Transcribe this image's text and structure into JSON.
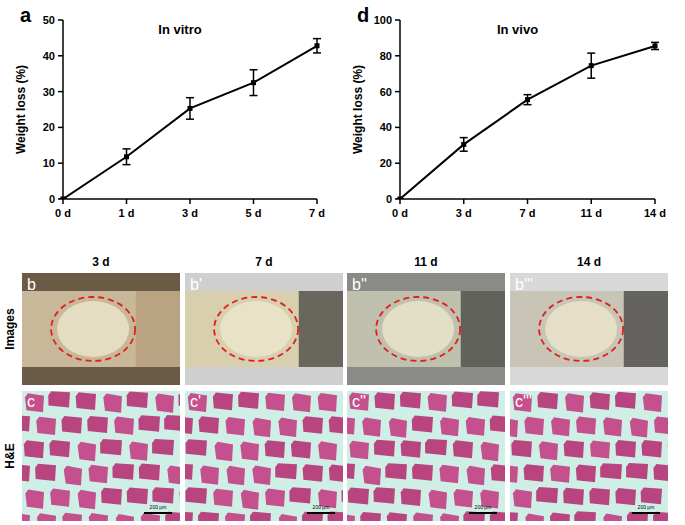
{
  "chart_data": [
    {
      "type": "line",
      "label": "a",
      "title": "In vitro",
      "y_label": "Weight loss (%)",
      "categories": [
        "0 d",
        "1 d",
        "3 d",
        "5 d",
        "7 d"
      ],
      "values": [
        0,
        11.8,
        25.3,
        32.5,
        42.8
      ],
      "errors": [
        0,
        2.2,
        3.0,
        3.6,
        2.0
      ],
      "color": "#000000",
      "marker": "square",
      "line_style": "solid",
      "ylim": [
        0,
        50
      ],
      "yticks": [
        0,
        10,
        20,
        30,
        40,
        50
      ],
      "grid": false
    },
    {
      "type": "line",
      "label": "d",
      "title": "In vivo",
      "y_label": "Weight loss (%)",
      "categories": [
        "0 d",
        "3 d",
        "7 d",
        "11 d",
        "14 d"
      ],
      "values": [
        0,
        30.5,
        55.5,
        74.5,
        85.5
      ],
      "errors": [
        0,
        3.8,
        2.8,
        7.0,
        2.0
      ],
      "color": "#000000",
      "marker": "square",
      "line_style": "solid",
      "ylim": [
        0,
        100
      ],
      "yticks": [
        0,
        20,
        40,
        60,
        80,
        100
      ],
      "grid": false
    }
  ],
  "panels": {
    "row_labels": [
      "Images",
      "H&E"
    ],
    "scale_bar": "200 μm",
    "columns": [
      {
        "time": "3 d",
        "image_label": "b",
        "he_label": "c"
      },
      {
        "time": "7 d",
        "image_label": "b'",
        "he_label": "c'"
      },
      {
        "time": "11 d",
        "image_label": "b''",
        "he_label": "c''"
      },
      {
        "time": "14 d",
        "image_label": "b'''",
        "he_label": "c'''"
      }
    ]
  }
}
